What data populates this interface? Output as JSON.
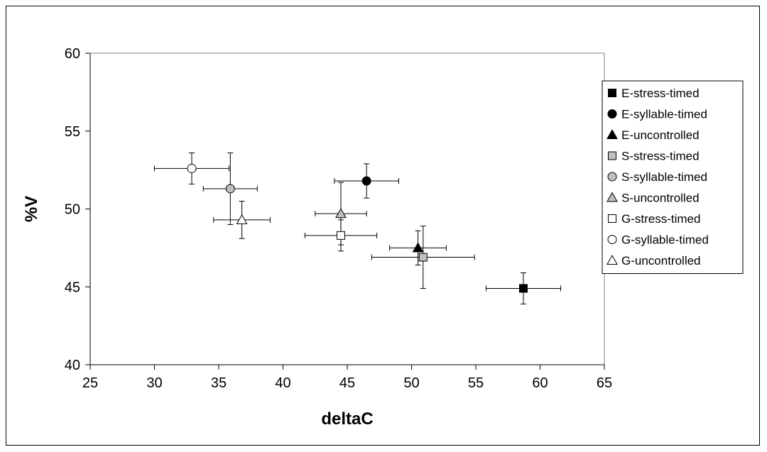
{
  "chart_data": {
    "type": "scatter",
    "title": "",
    "xlabel": "deltaC",
    "ylabel": "%V",
    "xlim": [
      25,
      65
    ],
    "ylim": [
      40,
      60
    ],
    "xticks": [
      "25",
      "30",
      "35",
      "40",
      "45",
      "50",
      "55",
      "60",
      "65"
    ],
    "yticks": [
      "40",
      "45",
      "50",
      "55",
      "60"
    ],
    "grid": false,
    "legend_position": "right",
    "series": [
      {
        "name": "E-stress-timed",
        "marker": "square",
        "fill": "#000000",
        "x": 58.7,
        "y": 44.9,
        "xerr": 2.9,
        "yerr": 1.0
      },
      {
        "name": "E-syllable-timed",
        "marker": "circle",
        "fill": "#000000",
        "x": 46.5,
        "y": 51.8,
        "xerr": 2.5,
        "yerr": 1.1
      },
      {
        "name": "E-uncontrolled",
        "marker": "triangle",
        "fill": "#000000",
        "x": 50.5,
        "y": 47.5,
        "xerr": 2.2,
        "yerr": 1.1
      },
      {
        "name": "S-stress-timed",
        "marker": "square",
        "fill": "#bfbfbf",
        "x": 50.9,
        "y": 46.9,
        "xerr": 4.0,
        "yerr": 2.0
      },
      {
        "name": "S-syllable-timed",
        "marker": "circle",
        "fill": "#bfbfbf",
        "x": 35.9,
        "y": 51.3,
        "xerr": 2.1,
        "yerr": 2.3
      },
      {
        "name": "S-uncontrolled",
        "marker": "triangle",
        "fill": "#bfbfbf",
        "x": 44.5,
        "y": 49.7,
        "xerr": 2.0,
        "yerr": 2.0
      },
      {
        "name": "G-stress-timed",
        "marker": "square",
        "fill": "#ffffff",
        "x": 44.5,
        "y": 48.3,
        "xerr": 2.8,
        "yerr": 1.0
      },
      {
        "name": "G-syllable-timed",
        "marker": "circle",
        "fill": "#ffffff",
        "x": 32.9,
        "y": 52.6,
        "xerr": 2.9,
        "yerr": 1.0
      },
      {
        "name": "G-uncontrolled",
        "marker": "triangle",
        "fill": "#ffffff",
        "x": 36.8,
        "y": 49.3,
        "xerr": 2.2,
        "yerr": 1.2
      }
    ]
  }
}
